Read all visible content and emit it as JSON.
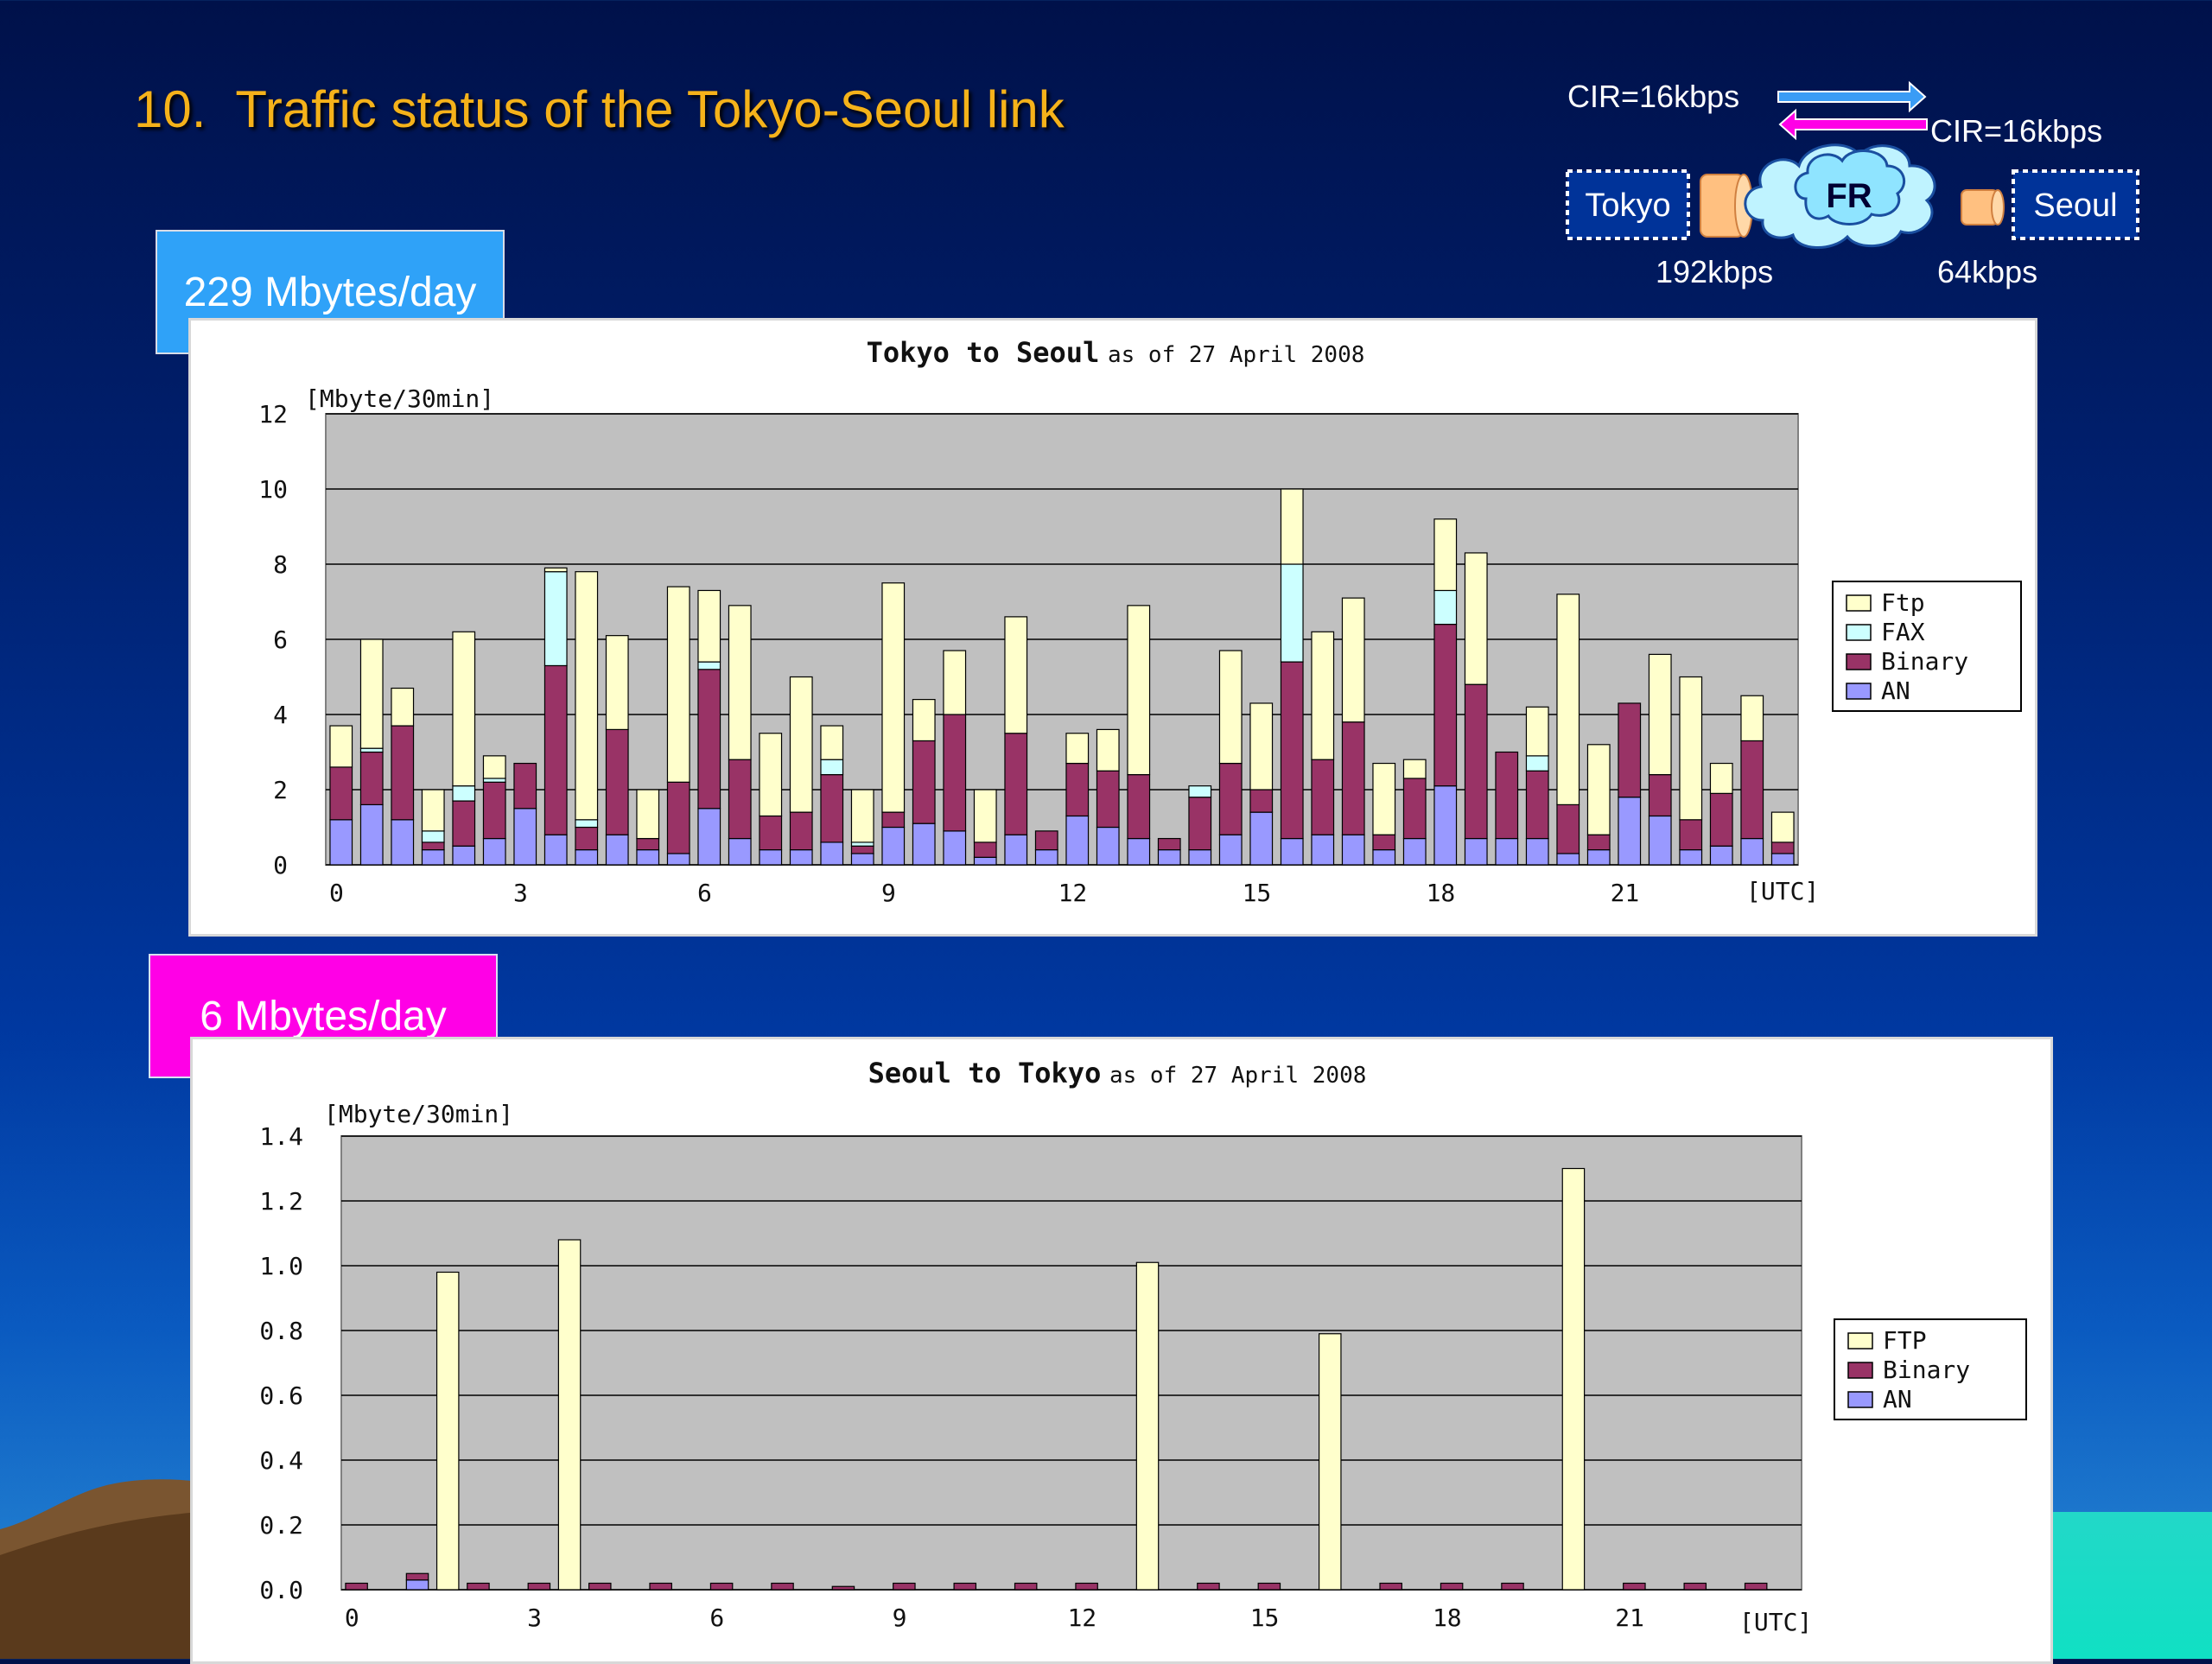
{
  "slide": {
    "title_number": "10.",
    "title_text": "Traffic status of the Tokyo-Seoul link"
  },
  "diagram": {
    "cir_top": "CIR=16kbps",
    "cir_bottom": "CIR=16kbps",
    "tokyo_label": "Tokyo",
    "seoul_label": "Seoul",
    "cloud_label": "FR",
    "tokyo_speed": "192kbps",
    "seoul_speed": "64kbps",
    "arrow_right_color": "#3a9cf5",
    "arrow_left_color": "#ff00e6"
  },
  "badges": {
    "tokyo_to_seoul": "229 Mbytes/day",
    "seoul_to_tokyo": "6 Mbytes/day"
  },
  "chart_data": [
    {
      "type": "bar",
      "stacked": true,
      "title_bold": "Tokyo to Seoul",
      "title_small": "as of 27 April 2008",
      "ylabel": "[Mbyte/30min]",
      "xlabel": "[UTC]",
      "ylim": [
        0,
        12
      ],
      "yticks": [
        "0",
        "2",
        "4",
        "6",
        "8",
        "10",
        "12"
      ],
      "xtick_labels": [
        "0",
        "3",
        "6",
        "9",
        "12",
        "15",
        "18",
        "21"
      ],
      "categories": [
        "0:00",
        "0:30",
        "1:00",
        "1:30",
        "2:00",
        "2:30",
        "3:00",
        "3:30",
        "4:00",
        "4:30",
        "5:00",
        "5:30",
        "6:00",
        "6:30",
        "7:00",
        "7:30",
        "8:00",
        "8:30",
        "9:00",
        "9:30",
        "10:00",
        "10:30",
        "11:00",
        "11:30",
        "12:00",
        "12:30",
        "13:00",
        "13:30",
        "14:00",
        "14:30",
        "15:00",
        "15:30",
        "16:00",
        "16:30",
        "17:00",
        "17:30",
        "18:00",
        "18:30",
        "19:00",
        "19:30",
        "20:00",
        "20:30",
        "21:00",
        "21:30",
        "22:00",
        "22:30",
        "23:00",
        "23:30"
      ],
      "series": [
        {
          "name": "AN",
          "color": "#9999ff",
          "values": [
            1.2,
            1.6,
            1.2,
            0.4,
            0.5,
            0.7,
            1.5,
            0.8,
            0.4,
            0.8,
            0.4,
            0.3,
            1.5,
            0.7,
            0.4,
            0.4,
            0.6,
            0.3,
            1.0,
            1.1,
            0.9,
            0.2,
            0.8,
            0.4,
            1.3,
            1.0,
            0.7,
            0.4,
            0.4,
            0.8,
            1.4,
            0.7,
            0.8,
            0.8,
            0.4,
            0.7,
            2.1,
            0.7,
            0.7,
            0.7,
            0.3,
            0.4,
            1.8,
            1.3,
            0.4,
            0.5,
            0.7,
            0.3
          ]
        },
        {
          "name": "Binary",
          "color": "#993366",
          "values": [
            1.4,
            1.4,
            2.5,
            0.2,
            1.2,
            1.5,
            1.2,
            4.5,
            0.6,
            2.8,
            0.3,
            1.9,
            3.7,
            2.1,
            0.9,
            1.0,
            1.8,
            0.2,
            0.4,
            2.2,
            3.1,
            0.4,
            2.7,
            0.5,
            1.4,
            1.5,
            1.7,
            0.3,
            1.4,
            1.9,
            0.6,
            4.7,
            2.0,
            3.0,
            0.4,
            1.6,
            4.3,
            4.1,
            2.3,
            1.8,
            1.3,
            0.4,
            2.5,
            1.1,
            0.8,
            1.4,
            2.6,
            0.3
          ]
        },
        {
          "name": "FAX",
          "color": "#ccffff",
          "values": [
            0.0,
            0.1,
            0.0,
            0.3,
            0.4,
            0.1,
            0.0,
            2.5,
            0.2,
            0.0,
            0.0,
            0.0,
            0.2,
            0.0,
            0.0,
            0.0,
            0.4,
            0.1,
            0.0,
            0.0,
            0.0,
            0.0,
            0.0,
            0.0,
            0.0,
            0.0,
            0.0,
            0.0,
            0.3,
            0.0,
            0.0,
            2.6,
            0.0,
            0.0,
            0.0,
            0.0,
            0.9,
            0.0,
            0.0,
            0.4,
            0.0,
            0.0,
            0.0,
            0.0,
            0.0,
            0.0,
            0.0,
            0.0
          ]
        },
        {
          "name": "Ftp",
          "color": "#ffffcc",
          "values": [
            1.1,
            2.9,
            1.0,
            1.1,
            4.1,
            0.6,
            0.0,
            0.1,
            6.6,
            2.5,
            1.3,
            5.2,
            1.9,
            4.1,
            2.2,
            3.6,
            0.9,
            1.4,
            6.1,
            1.1,
            1.7,
            1.4,
            3.1,
            0.0,
            0.8,
            1.1,
            4.5,
            0.0,
            0.0,
            3.0,
            2.3,
            2.0,
            3.4,
            3.3,
            1.9,
            0.5,
            1.9,
            3.5,
            0.0,
            1.3,
            5.6,
            2.4,
            0.0,
            3.2,
            3.8,
            0.8,
            1.2,
            0.8
          ]
        }
      ]
    },
    {
      "type": "bar",
      "stacked": true,
      "title_bold": "Seoul to Tokyo",
      "title_small": "as of 27 April 2008",
      "ylabel": "[Mbyte/30min]",
      "xlabel": "[UTC]",
      "ylim": [
        0,
        1.4
      ],
      "yticks": [
        "0.0",
        "0.2",
        "0.4",
        "0.6",
        "0.8",
        "1.0",
        "1.2",
        "1.4"
      ],
      "xtick_labels": [
        "0",
        "3",
        "6",
        "9",
        "12",
        "15",
        "18",
        "21"
      ],
      "categories": [
        "0:00",
        "0:30",
        "1:00",
        "1:30",
        "2:00",
        "2:30",
        "3:00",
        "3:30",
        "4:00",
        "4:30",
        "5:00",
        "5:30",
        "6:00",
        "6:30",
        "7:00",
        "7:30",
        "8:00",
        "8:30",
        "9:00",
        "9:30",
        "10:00",
        "10:30",
        "11:00",
        "11:30",
        "12:00",
        "12:30",
        "13:00",
        "13:30",
        "14:00",
        "14:30",
        "15:00",
        "15:30",
        "16:00",
        "16:30",
        "17:00",
        "17:30",
        "18:00",
        "18:30",
        "19:00",
        "19:30",
        "20:00",
        "20:30",
        "21:00",
        "21:30",
        "22:00",
        "22:30",
        "23:00",
        "23:30"
      ],
      "series": [
        {
          "name": "AN",
          "color": "#9999ff",
          "values": [
            0.0,
            0.0,
            0.03,
            0.0,
            0.0,
            0.0,
            0.0,
            0.0,
            0.0,
            0.0,
            0.0,
            0.0,
            0.0,
            0.0,
            0.0,
            0.0,
            0.0,
            0.0,
            0.0,
            0.0,
            0.0,
            0.0,
            0.0,
            0.0,
            0.0,
            0.0,
            0.0,
            0.0,
            0.0,
            0.0,
            0.0,
            0.0,
            0.0,
            0.0,
            0.0,
            0.0,
            0.0,
            0.0,
            0.0,
            0.0,
            0.0,
            0.0,
            0.0,
            0.0,
            0.0,
            0.0,
            0.0,
            0.0
          ]
        },
        {
          "name": "Binary",
          "color": "#993366",
          "values": [
            0.02,
            0.0,
            0.02,
            0.0,
            0.02,
            0.0,
            0.02,
            0.0,
            0.02,
            0.0,
            0.02,
            0.0,
            0.02,
            0.0,
            0.02,
            0.0,
            0.01,
            0.0,
            0.02,
            0.0,
            0.02,
            0.0,
            0.02,
            0.0,
            0.02,
            0.0,
            0.0,
            0.0,
            0.02,
            0.0,
            0.02,
            0.0,
            0.0,
            0.0,
            0.02,
            0.0,
            0.02,
            0.0,
            0.02,
            0.0,
            0.0,
            0.0,
            0.02,
            0.0,
            0.02,
            0.0,
            0.02,
            0.0
          ]
        },
        {
          "name": "FTP",
          "color": "#ffffcc",
          "values": [
            0.0,
            0.0,
            0.0,
            0.98,
            0.0,
            0.0,
            0.0,
            1.08,
            0.0,
            0.0,
            0.0,
            0.0,
            0.0,
            0.0,
            0.0,
            0.0,
            0.0,
            0.0,
            0.0,
            0.0,
            0.0,
            0.0,
            0.0,
            0.0,
            0.0,
            0.0,
            1.01,
            0.0,
            0.0,
            0.0,
            0.0,
            0.0,
            0.79,
            0.0,
            0.0,
            0.0,
            0.0,
            0.0,
            0.0,
            0.0,
            1.3,
            0.0,
            0.0,
            0.0,
            0.0,
            0.0,
            0.0,
            0.0
          ]
        }
      ]
    }
  ]
}
